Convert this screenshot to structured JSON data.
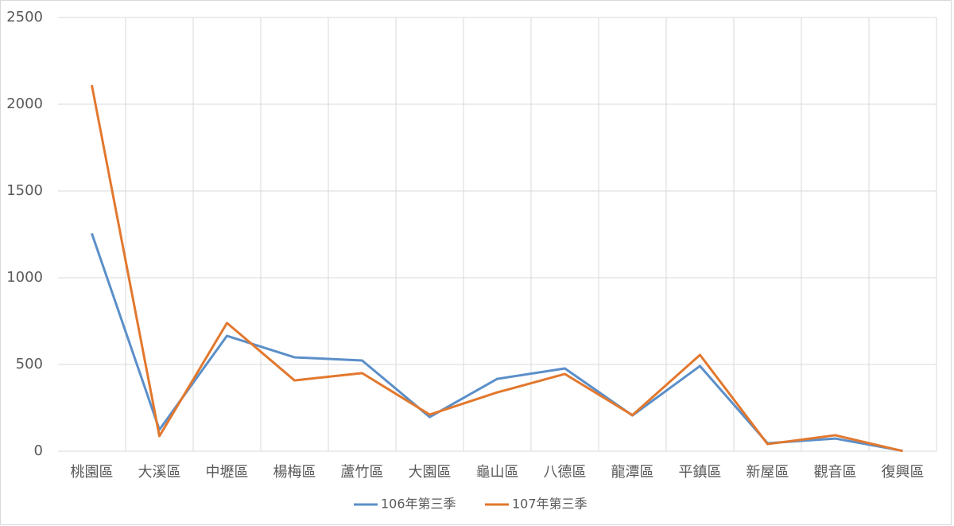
{
  "chart_data": {
    "type": "line",
    "categories": [
      "桃園區",
      "大溪區",
      "中壢區",
      "楊梅區",
      "蘆竹區",
      "大園區",
      "龜山區",
      "八德區",
      "龍潭區",
      "平鎮區",
      "新屋區",
      "觀音區",
      "復興區"
    ],
    "series": [
      {
        "name": "106年第三季",
        "color": "#5b8fc9",
        "values": [
          1255,
          124,
          665,
          541,
          523,
          197,
          417,
          477,
          206,
          491,
          46,
          73,
          2
        ]
      },
      {
        "name": "107年第三季",
        "color": "#e2782e",
        "values": [
          2110,
          87,
          739,
          408,
          450,
          211,
          339,
          445,
          208,
          555,
          41,
          92,
          1
        ]
      }
    ],
    "ylim": [
      0,
      2500
    ],
    "yticks": [
      0,
      500,
      1000,
      1500,
      2000,
      2500
    ],
    "grid": true,
    "legend": "bottom"
  }
}
